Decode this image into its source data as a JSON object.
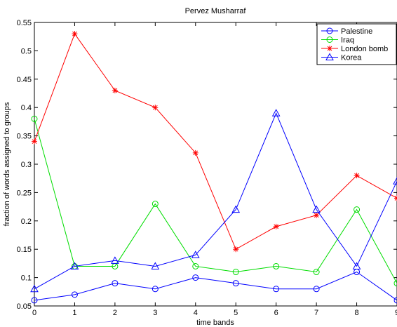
{
  "chart_data": {
    "type": "line",
    "title": "Pervez Musharraf",
    "xlabel": "time bands",
    "ylabel": "fraction of words assigned to groups",
    "x": [
      0,
      1,
      2,
      3,
      4,
      5,
      6,
      7,
      8,
      9
    ],
    "xlim": [
      0,
      9
    ],
    "ylim": [
      0.05,
      0.55
    ],
    "x_ticks": [
      "0",
      "1",
      "2",
      "3",
      "4",
      "5",
      "6",
      "7",
      "8",
      "9"
    ],
    "y_ticks": [
      "0.05",
      "0.1",
      "0.15",
      "0.2",
      "0.25",
      "0.3",
      "0.35",
      "0.4",
      "0.45",
      "0.5",
      "0.55"
    ],
    "grid": false,
    "legend_position": "top-right",
    "series": [
      {
        "name": "Palestine",
        "color": "#0000ff",
        "marker": "circle",
        "values": [
          0.06,
          0.07,
          0.09,
          0.08,
          0.1,
          0.09,
          0.08,
          0.08,
          0.11,
          0.06
        ]
      },
      {
        "name": "Iraq",
        "color": "#00dd00",
        "marker": "circle",
        "values": [
          0.38,
          0.12,
          0.12,
          0.23,
          0.12,
          0.11,
          0.12,
          0.11,
          0.22,
          0.09
        ]
      },
      {
        "name": "London bomb",
        "color": "#ff0000",
        "marker": "star",
        "values": [
          0.34,
          0.53,
          0.43,
          0.4,
          0.32,
          0.15,
          0.19,
          0.21,
          0.28,
          0.24
        ]
      },
      {
        "name": "Korea",
        "color": "#0000ff",
        "marker": "triangle",
        "values": [
          0.08,
          0.12,
          0.13,
          0.12,
          0.14,
          0.22,
          0.39,
          0.22,
          0.12,
          0.27
        ]
      }
    ]
  }
}
